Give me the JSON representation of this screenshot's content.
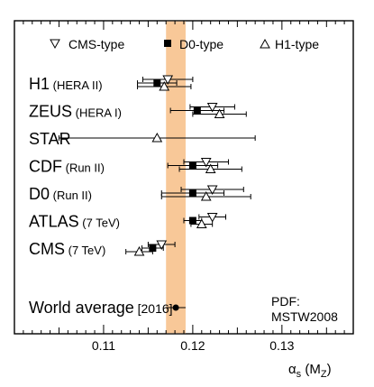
{
  "chart_data": {
    "type": "scatter",
    "title": "",
    "xlabel_symbol": "α",
    "xlabel_sub": "s",
    "xlabel_open": " (M",
    "xlabel_sub2": "Z",
    "xlabel_close": ")",
    "ylabel": "",
    "xlim": [
      0.1,
      0.138
    ],
    "x_ticks": [
      0.11,
      0.12,
      0.13
    ],
    "x_tick_labels": [
      "0.11",
      "0.12",
      "0.13"
    ],
    "grid": false,
    "legend": [
      {
        "name": "CMS-type",
        "marker": "triangle-down-open"
      },
      {
        "name": "D0-type",
        "marker": "square-filled"
      },
      {
        "name": "H1-type",
        "marker": "triangle-up-open"
      }
    ],
    "legend_position": "top",
    "band": {
      "center": 0.1181,
      "half_width": 0.0011,
      "color": "#f8c898"
    },
    "experiments": [
      {
        "name": "H1",
        "detail": "(HERA II)",
        "cms": {
          "value": 0.1172,
          "err": 0.0028
        },
        "d0": {
          "value": 0.116,
          "err": 0.0022
        },
        "h1": {
          "value": 0.1168,
          "err": 0.003
        }
      },
      {
        "name": "ZEUS",
        "detail": "(HERA I)",
        "cms": {
          "value": 0.1222,
          "err": 0.0025
        },
        "d0": {
          "value": 0.1205,
          "err": 0.003
        },
        "h1": {
          "value": 0.123,
          "err": 0.003
        }
      },
      {
        "name": "STAR",
        "detail": "",
        "h1": {
          "value": 0.116,
          "err": 0.011
        }
      },
      {
        "name": "CDF",
        "detail": "(Run II)",
        "cms": {
          "value": 0.1215,
          "err": 0.0025
        },
        "d0": {
          "value": 0.12,
          "err": 0.0028
        },
        "h1": {
          "value": 0.122,
          "err": 0.0035
        }
      },
      {
        "name": "D0",
        "detail": "(Run II)",
        "cms": {
          "value": 0.1222,
          "err": 0.0035
        },
        "d0": {
          "value": 0.12,
          "err": 0.0035
        },
        "h1": {
          "value": 0.1215,
          "err": 0.005
        }
      },
      {
        "name": "ATLAS",
        "detail": "(7 TeV)",
        "cms": {
          "value": 0.1222,
          "err": 0.0015
        },
        "d0": {
          "value": 0.12,
          "err": 0.001
        },
        "h1": {
          "value": 0.121,
          "err": 0.0012
        }
      },
      {
        "name": "CMS",
        "detail": "(7 TeV)",
        "cms": {
          "value": 0.1165,
          "err": 0.0015
        },
        "d0": {
          "value": 0.1155,
          "err": 0.0012
        },
        "h1": {
          "value": 0.114,
          "err": 0.0015
        }
      }
    ],
    "world_average": {
      "label": "World average",
      "detail": "[2016]",
      "value": 0.1181,
      "err": 0.0011
    },
    "annotation": [
      "PDF:",
      "MSTW2008"
    ]
  }
}
